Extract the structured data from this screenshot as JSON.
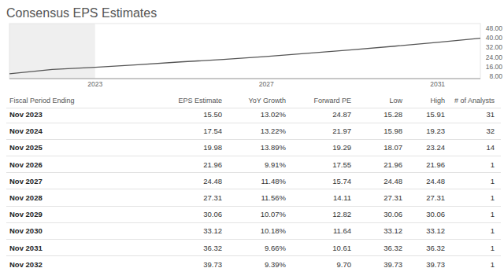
{
  "chart_data": {
    "type": "line",
    "title": "Consensus EPS Estimates",
    "x": [
      2021,
      2022,
      2023,
      2024,
      2025,
      2026,
      2027,
      2028,
      2029,
      2030,
      2031,
      2032
    ],
    "series": [
      {
        "color": "#555555",
        "values": [
          10.0,
          13.7,
          15.5,
          17.54,
          19.98,
          21.96,
          24.48,
          27.31,
          30.06,
          33.12,
          36.32,
          39.73
        ]
      }
    ],
    "xlim": [
      2021,
      2032
    ],
    "xticks": [
      2023,
      2027,
      2031
    ],
    "ylim": [
      6,
      52
    ],
    "yticks": [
      {
        "value": 8,
        "label": "8.00"
      },
      {
        "value": 16,
        "label": "16.00"
      },
      {
        "value": 24,
        "label": "24.00"
      },
      {
        "value": 32,
        "label": "32.00"
      },
      {
        "value": 40,
        "label": "40.00"
      },
      {
        "value": 48,
        "label": "48.00"
      }
    ],
    "grid": false
  },
  "table": {
    "columns": [
      "Fiscal Period Ending",
      "EPS Estimate",
      "YoY Growth",
      "Forward PE",
      "Low",
      "High",
      "# of Analysts"
    ],
    "rows": [
      [
        "Nov 2023",
        "15.50",
        "13.02%",
        "24.87",
        "15.28",
        "15.91",
        "31"
      ],
      [
        "Nov 2024",
        "17.54",
        "13.22%",
        "21.97",
        "15.98",
        "19.23",
        "32"
      ],
      [
        "Nov 2025",
        "19.98",
        "13.89%",
        "19.29",
        "18.07",
        "23.24",
        "14"
      ],
      [
        "Nov 2026",
        "21.96",
        "9.91%",
        "17.55",
        "21.96",
        "21.96",
        "1"
      ],
      [
        "Nov 2027",
        "24.48",
        "11.48%",
        "15.74",
        "24.48",
        "24.48",
        "1"
      ],
      [
        "Nov 2028",
        "27.31",
        "11.56%",
        "14.11",
        "27.31",
        "27.31",
        "1"
      ],
      [
        "Nov 2029",
        "30.06",
        "10.07%",
        "12.82",
        "30.06",
        "30.06",
        "1"
      ],
      [
        "Nov 2030",
        "33.12",
        "10.18%",
        "11.64",
        "33.12",
        "33.12",
        "1"
      ],
      [
        "Nov 2031",
        "36.32",
        "9.66%",
        "10.61",
        "36.32",
        "36.32",
        "1"
      ],
      [
        "Nov 2032",
        "39.73",
        "9.39%",
        "9.70",
        "39.73",
        "39.73",
        "1"
      ]
    ]
  }
}
